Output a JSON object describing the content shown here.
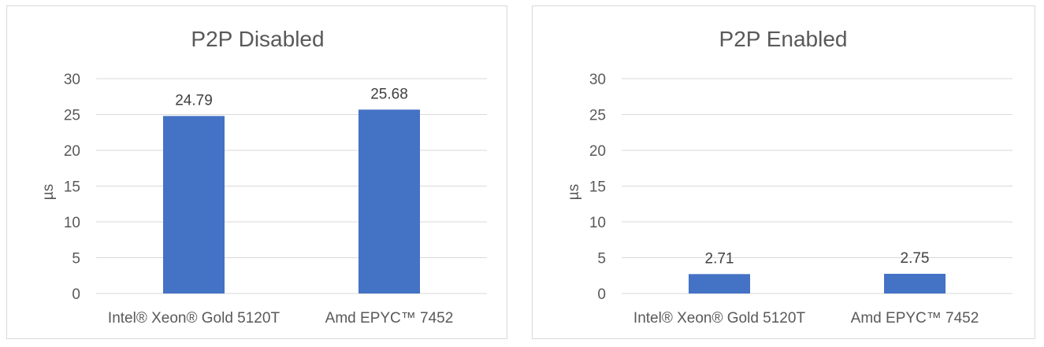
{
  "chart_data": [
    {
      "type": "bar",
      "title": "P2P Disabled",
      "ylabel": "µs",
      "xlabel": "",
      "categories": [
        "Intel® Xeon® Gold 5120T",
        "Amd EPYC™ 7452"
      ],
      "values": [
        24.79,
        25.68
      ],
      "value_labels": [
        "24.79",
        "25.68"
      ],
      "ylim": [
        0,
        30
      ],
      "yticks": [
        0,
        5,
        10,
        15,
        20,
        25,
        30
      ],
      "ytick_labels": [
        "0",
        "5",
        "10",
        "15",
        "20",
        "25",
        "30"
      ],
      "grid": true,
      "bar_color": "#4472C4"
    },
    {
      "type": "bar",
      "title": "P2P Enabled",
      "ylabel": "µs",
      "xlabel": "",
      "categories": [
        "Intel® Xeon® Gold 5120T",
        "Amd EPYC™ 7452"
      ],
      "values": [
        2.71,
        2.75
      ],
      "value_labels": [
        "2.71",
        "2.75"
      ],
      "ylim": [
        0,
        30
      ],
      "yticks": [
        0,
        5,
        10,
        15,
        20,
        25,
        30
      ],
      "ytick_labels": [
        "0",
        "5",
        "10",
        "15",
        "20",
        "25",
        "30"
      ],
      "grid": true,
      "bar_color": "#4472C4"
    }
  ]
}
